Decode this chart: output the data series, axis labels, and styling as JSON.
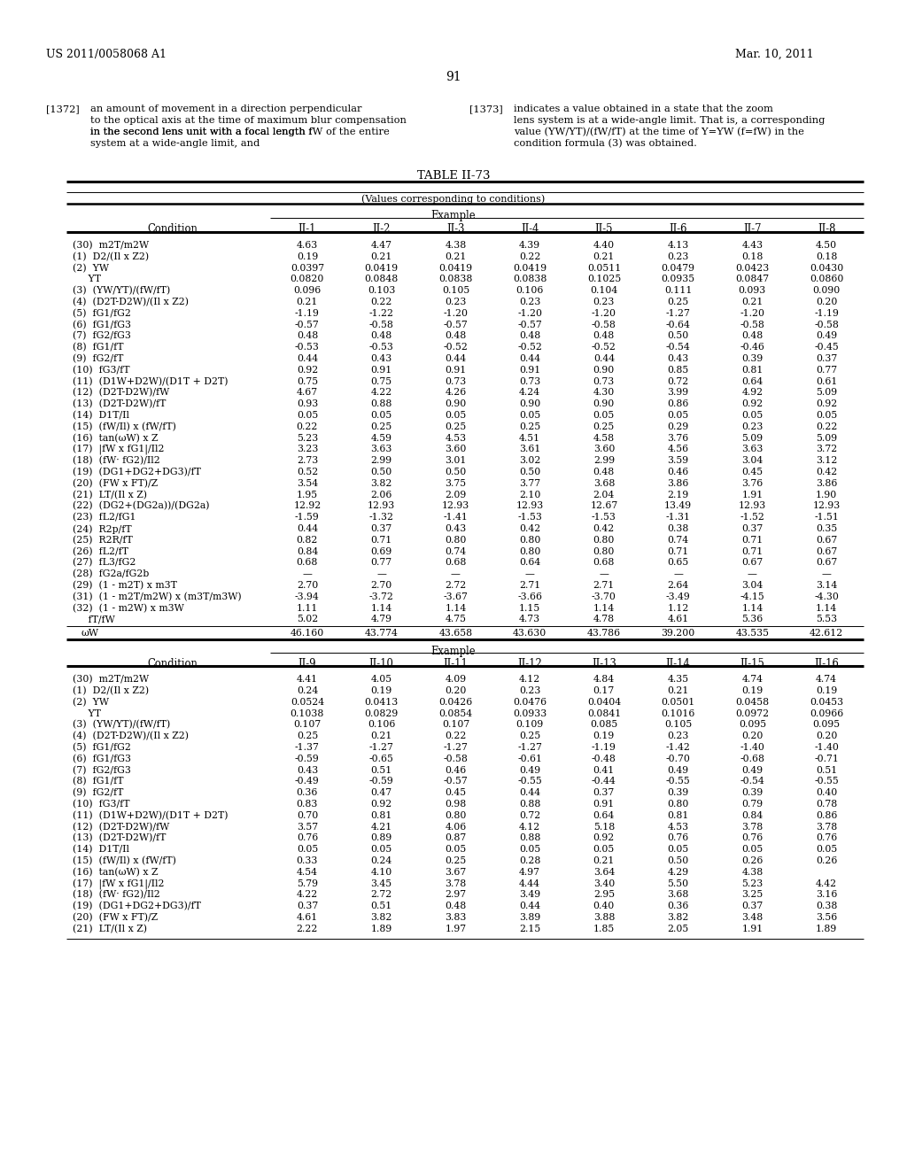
{
  "page_header_left": "US 2011/0058068 A1",
  "page_header_right": "Mar. 10, 2011",
  "page_number": "91",
  "table_title": "TABLE II-73",
  "table_subtitle": "(Values corresponding to conditions)",
  "col_headers1": [
    "II-1",
    "II-2",
    "II-3",
    "II-4",
    "II-5",
    "II-6",
    "II-7",
    "II-8"
  ],
  "col_headers2": [
    "II-9",
    "II-10",
    "II-11",
    "II-12",
    "II-13",
    "II-14",
    "II-15",
    "II-16"
  ],
  "rows1": [
    [
      "(30)  m2T/m2W",
      "4.63",
      "4.47",
      "4.38",
      "4.39",
      "4.40",
      "4.13",
      "4.43",
      "4.50"
    ],
    [
      "(1)  D2/(Il x Z2)",
      "0.19",
      "0.21",
      "0.21",
      "0.22",
      "0.21",
      "0.23",
      "0.18",
      "0.18"
    ],
    [
      "(2)  YW",
      "0.0397",
      "0.0419",
      "0.0419",
      "0.0419",
      "0.0511",
      "0.0479",
      "0.0423",
      "0.0430"
    ],
    [
      "     YT",
      "0.0820",
      "0.0848",
      "0.0838",
      "0.0838",
      "0.1025",
      "0.0935",
      "0.0847",
      "0.0860"
    ],
    [
      "(3)  (YW/YT)/(fW/fT)",
      "0.096",
      "0.103",
      "0.105",
      "0.106",
      "0.104",
      "0.111",
      "0.093",
      "0.090"
    ],
    [
      "(4)  (D2T-D2W)/(Il x Z2)",
      "0.21",
      "0.22",
      "0.23",
      "0.23",
      "0.23",
      "0.25",
      "0.21",
      "0.20"
    ],
    [
      "(5)  fG1/fG2",
      "-1.19",
      "-1.22",
      "-1.20",
      "-1.20",
      "-1.20",
      "-1.27",
      "-1.20",
      "-1.19"
    ],
    [
      "(6)  fG1/fG3",
      "-0.57",
      "-0.58",
      "-0.57",
      "-0.57",
      "-0.58",
      "-0.64",
      "-0.58",
      "-0.58"
    ],
    [
      "(7)  fG2/fG3",
      "0.48",
      "0.48",
      "0.48",
      "0.48",
      "0.48",
      "0.50",
      "0.48",
      "0.49"
    ],
    [
      "(8)  fG1/fT",
      "-0.53",
      "-0.53",
      "-0.52",
      "-0.52",
      "-0.52",
      "-0.54",
      "-0.46",
      "-0.45"
    ],
    [
      "(9)  fG2/fT",
      "0.44",
      "0.43",
      "0.44",
      "0.44",
      "0.44",
      "0.43",
      "0.39",
      "0.37"
    ],
    [
      "(10)  fG3/fT",
      "0.92",
      "0.91",
      "0.91",
      "0.91",
      "0.90",
      "0.85",
      "0.81",
      "0.77"
    ],
    [
      "(11)  (D1W+D2W)/(D1T + D2T)",
      "0.75",
      "0.75",
      "0.73",
      "0.73",
      "0.73",
      "0.72",
      "0.64",
      "0.61"
    ],
    [
      "(12)  (D2T-D2W)/fW",
      "4.67",
      "4.22",
      "4.26",
      "4.24",
      "4.30",
      "3.99",
      "4.92",
      "5.09"
    ],
    [
      "(13)  (D2T-D2W)/fT",
      "0.93",
      "0.88",
      "0.90",
      "0.90",
      "0.90",
      "0.86",
      "0.92",
      "0.92"
    ],
    [
      "(14)  D1T/Il",
      "0.05",
      "0.05",
      "0.05",
      "0.05",
      "0.05",
      "0.05",
      "0.05",
      "0.05"
    ],
    [
      "(15)  (fW/Il) x (fW/fT)",
      "0.22",
      "0.25",
      "0.25",
      "0.25",
      "0.25",
      "0.29",
      "0.23",
      "0.22"
    ],
    [
      "(16)  tan(ωW) x Z",
      "5.23",
      "4.59",
      "4.53",
      "4.51",
      "4.58",
      "3.76",
      "5.09",
      "5.09"
    ],
    [
      "(17)  |fW x fG1|/Il2",
      "3.23",
      "3.63",
      "3.60",
      "3.61",
      "3.60",
      "4.56",
      "3.63",
      "3.72"
    ],
    [
      "(18)  (fW· fG2)/Il2",
      "2.73",
      "2.99",
      "3.01",
      "3.02",
      "2.99",
      "3.59",
      "3.04",
      "3.12"
    ],
    [
      "(19)  (DG1+DG2+DG3)/fT",
      "0.52",
      "0.50",
      "0.50",
      "0.50",
      "0.48",
      "0.46",
      "0.45",
      "0.42"
    ],
    [
      "(20)  (FW x FT)/Z",
      "3.54",
      "3.82",
      "3.75",
      "3.77",
      "3.68",
      "3.86",
      "3.76",
      "3.86"
    ],
    [
      "(21)  LT/(Il x Z)",
      "1.95",
      "2.06",
      "2.09",
      "2.10",
      "2.04",
      "2.19",
      "1.91",
      "1.90"
    ],
    [
      "(22)  (DG2+(DG2a))/(DG2a)",
      "12.92",
      "12.93",
      "12.93",
      "12.93",
      "12.67",
      "13.49",
      "12.93",
      "12.93"
    ],
    [
      "(23)  fL2/fG1",
      "-1.59",
      "-1.32",
      "-1.41",
      "-1.53",
      "-1.53",
      "-1.31",
      "-1.52",
      "-1.51"
    ],
    [
      "(24)  R2p/fT",
      "0.44",
      "0.37",
      "0.43",
      "0.42",
      "0.42",
      "0.38",
      "0.37",
      "0.35"
    ],
    [
      "(25)  R2R/fT",
      "0.82",
      "0.71",
      "0.80",
      "0.80",
      "0.80",
      "0.74",
      "0.71",
      "0.67"
    ],
    [
      "(26)  fL2/fT",
      "0.84",
      "0.69",
      "0.74",
      "0.80",
      "0.80",
      "0.71",
      "0.71",
      "0.67"
    ],
    [
      "(27)  fL3/fG2",
      "0.68",
      "0.77",
      "0.68",
      "0.64",
      "0.68",
      "0.65",
      "0.67",
      "0.67"
    ],
    [
      "(28)  fG2a/fG2b",
      "—",
      "—",
      "—",
      "—",
      "—",
      "—",
      "—",
      "—"
    ],
    [
      "(29)  (1 - m2T) x m3T",
      "2.70",
      "2.70",
      "2.72",
      "2.71",
      "2.71",
      "2.64",
      "3.04",
      "3.14"
    ],
    [
      "(31)  (1 - m2T/m2W) x (m3T/m3W)",
      "-3.94",
      "-3.72",
      "-3.67",
      "-3.66",
      "-3.70",
      "-3.49",
      "-4.15",
      "-4.30"
    ],
    [
      "(32)  (1 - m2W) x m3W",
      "1.11",
      "1.14",
      "1.14",
      "1.15",
      "1.14",
      "1.12",
      "1.14",
      "1.14"
    ],
    [
      "     fT/fW",
      "5.02",
      "4.79",
      "4.75",
      "4.73",
      "4.78",
      "4.61",
      "5.36",
      "5.53"
    ]
  ],
  "omega_row": [
    "ωW",
    "46.160",
    "43.774",
    "43.658",
    "43.630",
    "43.786",
    "39.200",
    "43.535",
    "42.612"
  ],
  "rows2": [
    [
      "(30)  m2T/m2W",
      "4.41",
      "4.05",
      "4.09",
      "4.12",
      "4.84",
      "4.35",
      "4.74",
      "4.74"
    ],
    [
      "(1)  D2/(Il x Z2)",
      "0.24",
      "0.19",
      "0.20",
      "0.23",
      "0.17",
      "0.21",
      "0.19",
      "0.19"
    ],
    [
      "(2)  YW",
      "0.0524",
      "0.0413",
      "0.0426",
      "0.0476",
      "0.0404",
      "0.0501",
      "0.0458",
      "0.0453"
    ],
    [
      "     YT",
      "0.1038",
      "0.0829",
      "0.0854",
      "0.0933",
      "0.0841",
      "0.1016",
      "0.0972",
      "0.0966"
    ],
    [
      "(3)  (YW/YT)/(fW/fT)",
      "0.107",
      "0.106",
      "0.107",
      "0.109",
      "0.085",
      "0.105",
      "0.095",
      "0.095"
    ],
    [
      "(4)  (D2T-D2W)/(Il x Z2)",
      "0.25",
      "0.21",
      "0.22",
      "0.25",
      "0.19",
      "0.23",
      "0.20",
      "0.20"
    ],
    [
      "(5)  fG1/fG2",
      "-1.37",
      "-1.27",
      "-1.27",
      "-1.27",
      "-1.19",
      "-1.42",
      "-1.40",
      "-1.40"
    ],
    [
      "(6)  fG1/fG3",
      "-0.59",
      "-0.65",
      "-0.58",
      "-0.61",
      "-0.48",
      "-0.70",
      "-0.68",
      "-0.71"
    ],
    [
      "(7)  fG2/fG3",
      "0.43",
      "0.51",
      "0.46",
      "0.49",
      "0.41",
      "0.49",
      "0.49",
      "0.51"
    ],
    [
      "(8)  fG1/fT",
      "-0.49",
      "-0.59",
      "-0.57",
      "-0.55",
      "-0.44",
      "-0.55",
      "-0.54",
      "-0.55"
    ],
    [
      "(9)  fG2/fT",
      "0.36",
      "0.47",
      "0.45",
      "0.44",
      "0.37",
      "0.39",
      "0.39",
      "0.40"
    ],
    [
      "(10)  fG3/fT",
      "0.83",
      "0.92",
      "0.98",
      "0.88",
      "0.91",
      "0.80",
      "0.79",
      "0.78"
    ],
    [
      "(11)  (D1W+D2W)/(D1T + D2T)",
      "0.70",
      "0.81",
      "0.80",
      "0.72",
      "0.64",
      "0.81",
      "0.84",
      "0.86"
    ],
    [
      "(12)  (D2T-D2W)/fW",
      "3.57",
      "4.21",
      "4.06",
      "4.12",
      "5.18",
      "4.53",
      "3.78",
      "3.78"
    ],
    [
      "(13)  (D2T-D2W)/fT",
      "0.76",
      "0.89",
      "0.87",
      "0.88",
      "0.92",
      "0.76",
      "0.76",
      "0.76"
    ],
    [
      "(14)  D1T/Il",
      "0.05",
      "0.05",
      "0.05",
      "0.05",
      "0.05",
      "0.05",
      "0.05",
      "0.05"
    ],
    [
      "(15)  (fW/Il) x (fW/fT)",
      "0.33",
      "0.24",
      "0.25",
      "0.28",
      "0.21",
      "0.50",
      "0.26",
      "0.26"
    ],
    [
      "(16)  tan(ωW) x Z",
      "4.54",
      "4.10",
      "3.67",
      "4.97",
      "3.64",
      "4.29",
      "4.38",
      ""
    ],
    [
      "(17)  |fW x fG1|/Il2",
      "5.79",
      "3.45",
      "3.78",
      "4.44",
      "3.40",
      "5.50",
      "5.23",
      "4.42"
    ],
    [
      "(18)  (fW· fG2)/Il2",
      "4.22",
      "2.72",
      "2.97",
      "3.49",
      "2.95",
      "3.68",
      "3.25",
      "3.16"
    ],
    [
      "(19)  (DG1+DG2+DG3)/fT",
      "0.37",
      "0.51",
      "0.48",
      "0.44",
      "0.40",
      "0.36",
      "0.37",
      "0.38"
    ],
    [
      "(20)  (FW x FT)/Z",
      "4.61",
      "3.82",
      "3.83",
      "3.89",
      "3.88",
      "3.82",
      "3.48",
      "3.56"
    ],
    [
      "(21)  LT/(Il x Z)",
      "2.22",
      "1.89",
      "1.97",
      "2.15",
      "1.85",
      "2.05",
      "1.91",
      "1.89"
    ]
  ]
}
